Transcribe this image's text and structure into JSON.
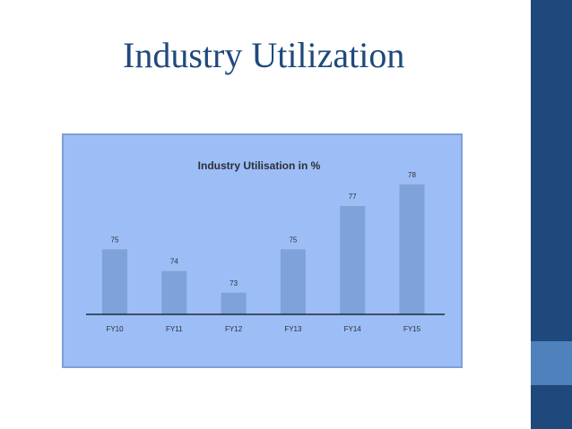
{
  "slide": {
    "title": "Industry Utilization",
    "colors": {
      "title": "#1f497d",
      "right_bar": "#1f497d",
      "accent_block": "#4f81bd",
      "chart_background": "#9dbdf6",
      "bar": "#7ea2d9"
    }
  },
  "chart_data": {
    "type": "bar",
    "title": "Industry Utilisation in %",
    "xlabel": "",
    "ylabel": "",
    "categories": [
      "FY10",
      "FY11",
      "FY12",
      "FY13",
      "FY14",
      "FY15"
    ],
    "values": [
      75,
      74,
      73,
      75,
      77,
      78
    ],
    "data_labels": [
      "75",
      "74",
      "73",
      "75",
      "77",
      "78"
    ],
    "ylim": [
      72,
      78
    ],
    "grid": false,
    "legend": "none"
  }
}
